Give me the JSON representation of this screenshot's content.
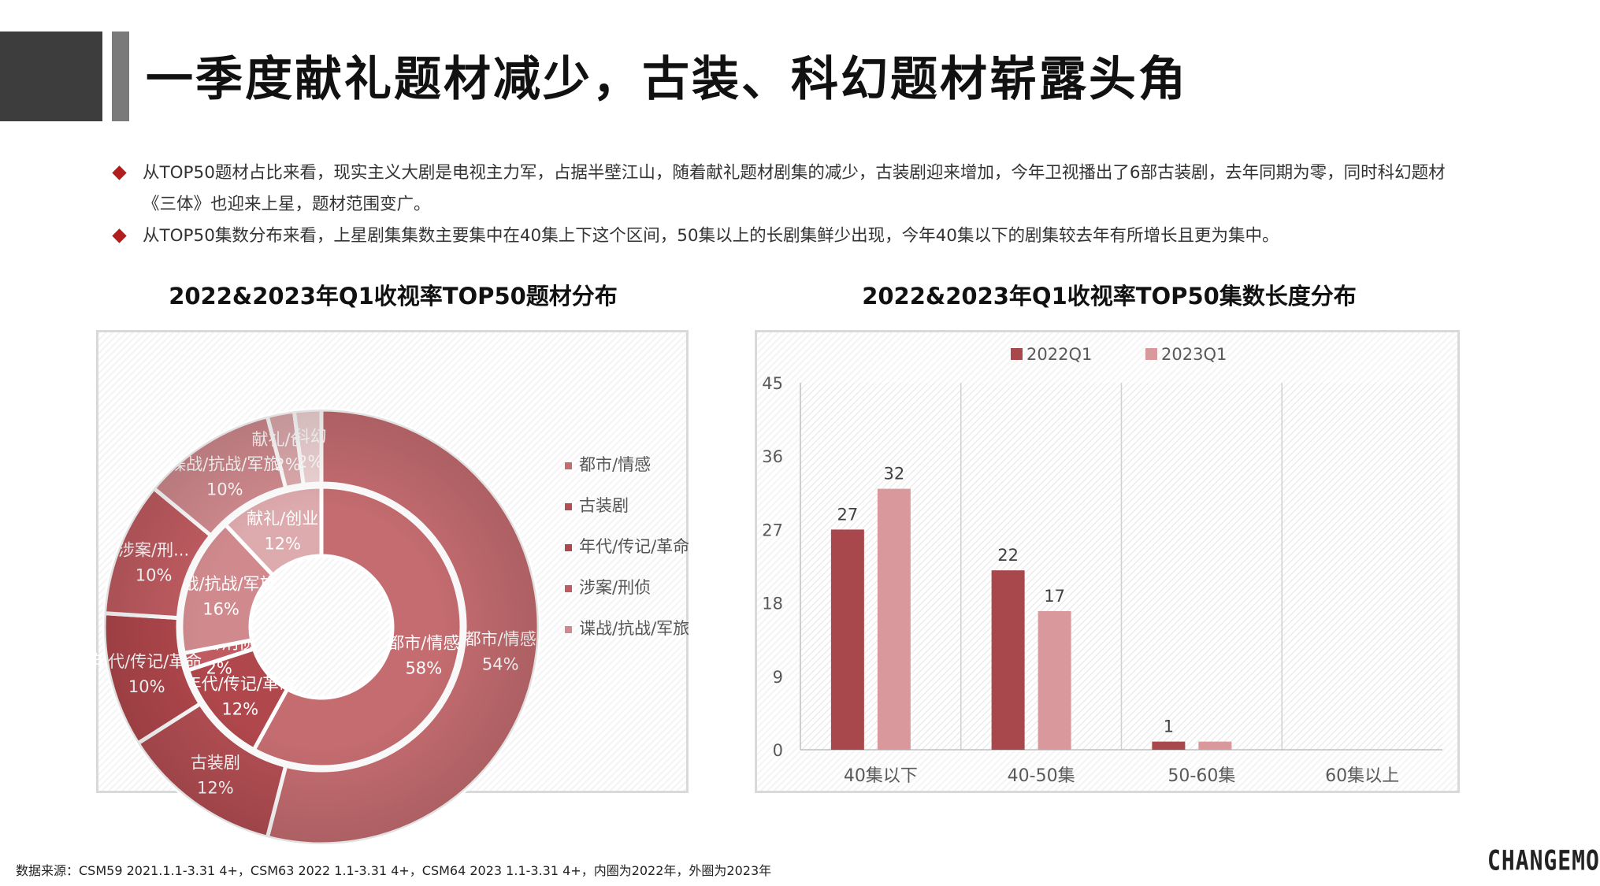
{
  "title": "一季度献礼题材减少，古装、科幻题材崭露头角",
  "bullets": [
    "从TOP50题材占比来看，现实主义大剧是电视主力军，占据半壁江山，随着献礼题材剧集的减少，古装剧迎来增加，今年卫视播出了6部古装剧，去年同期为零，同时科幻题材《三体》也迎来上星，题材范围变广。",
    "从TOP50集数分布来看，上星剧集集数主要集中在40集上下这个区间，50集以上的长剧集鲜少出现，今年40集以下的剧集较去年有所增长且更为集中。"
  ],
  "footnote": "数据来源：CSM59 2021.1.1-3.31 4+，CSM63 2022 1.1-3.31 4+，CSM64 2023 1.1-3.31 4+，内圈为2022年，外圈为2023年",
  "logo": "CHANGEMO",
  "colors": {
    "accent": "#b01e1e",
    "series_2022": "#a8484c",
    "series_2023": "#d9999c"
  },
  "chart_data": [
    {
      "type": "pie",
      "variant": "doughnut",
      "title": "2022&2023年Q1收视率TOP50题材分布",
      "legend": [
        "都市/情感",
        "古装剧",
        "年代/传记/革命",
        "涉案/刑侦",
        "谍战/抗战/军旅"
      ],
      "legend_position": "right",
      "rings": [
        {
          "ring": "inner",
          "year": "2022",
          "slices": [
            {
              "label": "都市/情感",
              "value": 58,
              "text": "58%"
            },
            {
              "label": "年代/传记/革命",
              "value": 12,
              "text": "12%"
            },
            {
              "label": "涉案/刑侦",
              "value": 2,
              "text": "2%"
            },
            {
              "label": "谍战/抗战/军旅",
              "value": 16,
              "text": "16%"
            },
            {
              "label": "献礼/创业",
              "value": 12,
              "text": "12%"
            }
          ]
        },
        {
          "ring": "outer",
          "year": "2023",
          "slices": [
            {
              "label": "都市/情感",
              "value": 54,
              "text": "54%"
            },
            {
              "label": "古装剧",
              "value": 12,
              "text": "12%"
            },
            {
              "label": "年代/传记/革命",
              "value": 10,
              "text": "10%"
            },
            {
              "label": "涉案/刑...",
              "value": 10,
              "text": "10%"
            },
            {
              "label": "谍战/抗战/军旅",
              "value": 10,
              "text": "10%"
            },
            {
              "label": "献礼/创业",
              "value": 2,
              "text": "2%"
            },
            {
              "label": "科幻",
              "value": 2,
              "text": "2%"
            }
          ]
        }
      ]
    },
    {
      "type": "bar",
      "title": "2022&2023年Q1收视率TOP50集数长度分布",
      "categories": [
        "40集以下",
        "40-50集",
        "50-60集",
        "60集以上"
      ],
      "series": [
        {
          "name": "2022Q1",
          "values": [
            27,
            22,
            1,
            0
          ],
          "labels": [
            "27",
            "22",
            "1",
            ""
          ]
        },
        {
          "name": "2023Q1",
          "values": [
            32,
            17,
            1,
            0
          ],
          "labels": [
            "32",
            "17",
            "",
            ""
          ]
        }
      ],
      "yticks": [
        "0",
        "9",
        "18",
        "27",
        "36",
        "45"
      ],
      "ylim": [
        0,
        45
      ],
      "legend_position": "top",
      "grid": true
    }
  ]
}
